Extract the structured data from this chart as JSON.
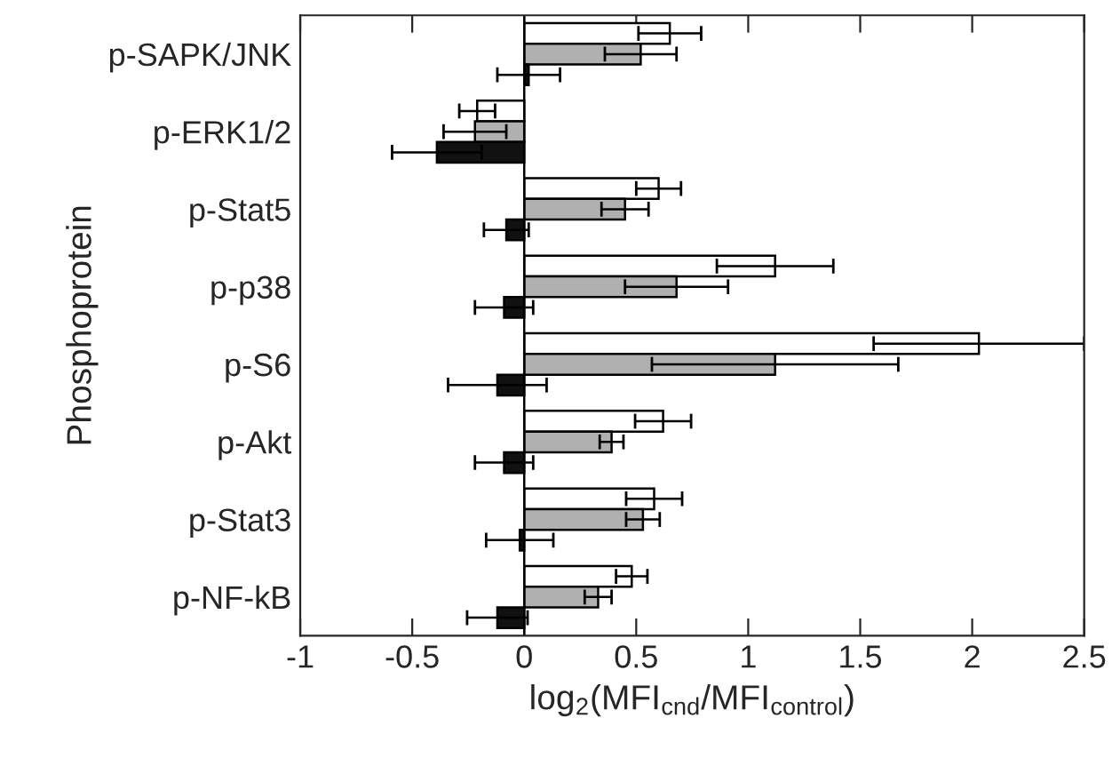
{
  "chart_data": {
    "type": "bar",
    "orientation": "horizontal",
    "xlabel": "log$_{2}$(MFI$_{cnd}$/MFI$_{control}$)",
    "ylabel": "Phosphoprotein",
    "categories": [
      "p-SAPK/JNK",
      "p-ERK1/2",
      "p-Stat5",
      "p-p38",
      "p-S6",
      "p-Akt",
      "p-Stat3",
      "p-NF-kB"
    ],
    "series": [
      {
        "color": "#ffffff",
        "values": [
          0.65,
          -0.21,
          0.6,
          1.12,
          2.03,
          0.62,
          0.58,
          0.48
        ],
        "errors": [
          0.14,
          0.08,
          0.1,
          0.26,
          0.47,
          0.125,
          0.125,
          0.07
        ]
      },
      {
        "color": "#b0b0b0",
        "values": [
          0.52,
          -0.22,
          0.45,
          0.68,
          1.12,
          0.39,
          0.53,
          0.33
        ],
        "errors": [
          0.16,
          0.14,
          0.105,
          0.23,
          0.55,
          0.053,
          0.075,
          0.06
        ]
      },
      {
        "color": "#111111",
        "values": [
          0.02,
          -0.39,
          -0.08,
          -0.09,
          -0.12,
          -0.09,
          -0.02,
          -0.12
        ],
        "errors": [
          0.14,
          0.2,
          0.1,
          0.13,
          0.22,
          0.13,
          0.15,
          0.135
        ]
      }
    ],
    "xlim": [
      -1,
      2.5
    ],
    "xticks": [
      -1,
      -0.5,
      0,
      0.5,
      1,
      1.5,
      2,
      2.5
    ],
    "ref_lines": [
      {
        "axis": "x",
        "value": 0,
        "color": "#000000"
      }
    ],
    "legend": false
  }
}
